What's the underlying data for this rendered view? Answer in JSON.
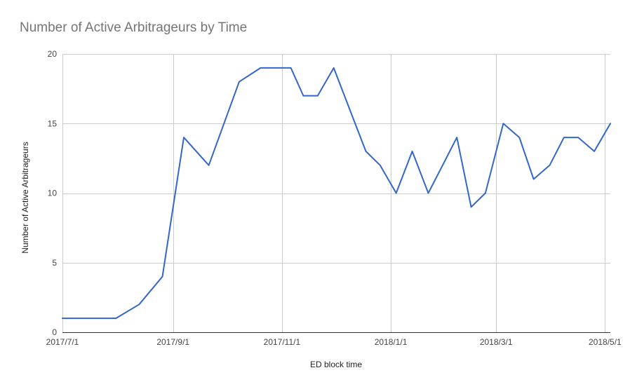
{
  "chart_data": {
    "type": "line",
    "title": "Number of Active Arbitrageurs by Time",
    "xlabel": "ED block time",
    "ylabel": "Number of Active Arbitrageurs",
    "x_tick_labels": [
      "2017/7/1",
      "2017/9/1",
      "2017/11/1",
      "2018/1/1",
      "2018/3/1",
      "2018/5/1"
    ],
    "x_tick_dates": [
      "2017-07-01",
      "2017-09-01",
      "2017-11-01",
      "2018-01-01",
      "2018-03-01",
      "2018-05-01"
    ],
    "x_range": [
      "2017-07-01",
      "2018-05-04"
    ],
    "y_ticks": [
      0,
      5,
      10,
      15,
      20
    ],
    "ylim": [
      0,
      20
    ],
    "grid": true,
    "legend": "none",
    "series": [
      {
        "color": "#3366cc",
        "points": [
          {
            "x": "2017-07-01",
            "y": 1
          },
          {
            "x": "2017-07-09",
            "y": 1
          },
          {
            "x": "2017-07-17",
            "y": 1
          },
          {
            "x": "2017-07-24",
            "y": 1
          },
          {
            "x": "2017-07-31",
            "y": 1
          },
          {
            "x": "2017-08-13",
            "y": 2
          },
          {
            "x": "2017-08-26",
            "y": 4
          },
          {
            "x": "2017-09-07",
            "y": 14
          },
          {
            "x": "2017-09-21",
            "y": 12
          },
          {
            "x": "2017-10-08",
            "y": 18
          },
          {
            "x": "2017-10-20",
            "y": 19
          },
          {
            "x": "2017-10-30",
            "y": 19
          },
          {
            "x": "2017-11-06",
            "y": 19
          },
          {
            "x": "2017-11-13",
            "y": 17
          },
          {
            "x": "2017-11-21",
            "y": 17
          },
          {
            "x": "2017-11-30",
            "y": 19
          },
          {
            "x": "2017-12-18",
            "y": 13
          },
          {
            "x": "2017-12-26",
            "y": 12
          },
          {
            "x": "2018-01-04",
            "y": 10
          },
          {
            "x": "2018-01-13",
            "y": 13
          },
          {
            "x": "2018-01-22",
            "y": 10
          },
          {
            "x": "2018-01-30",
            "y": 12
          },
          {
            "x": "2018-02-07",
            "y": 14
          },
          {
            "x": "2018-02-15",
            "y": 9
          },
          {
            "x": "2018-02-23",
            "y": 10
          },
          {
            "x": "2018-03-05",
            "y": 15
          },
          {
            "x": "2018-03-14",
            "y": 14
          },
          {
            "x": "2018-03-22",
            "y": 11
          },
          {
            "x": "2018-03-31",
            "y": 12
          },
          {
            "x": "2018-04-08",
            "y": 14
          },
          {
            "x": "2018-04-16",
            "y": 14
          },
          {
            "x": "2018-04-25",
            "y": 13
          },
          {
            "x": "2018-05-04",
            "y": 15
          }
        ]
      }
    ]
  }
}
